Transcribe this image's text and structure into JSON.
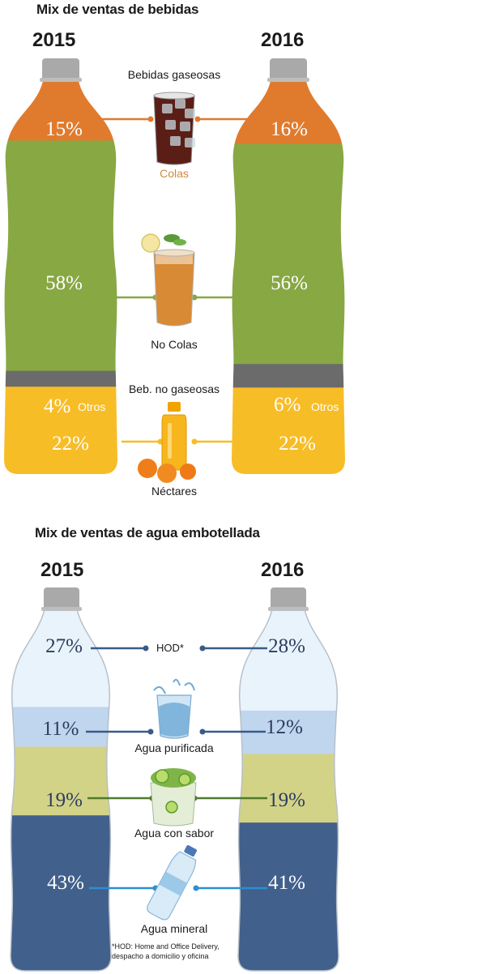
{
  "chart_data": [
    {
      "type": "bar",
      "title": "Mix de ventas de bebidas",
      "categories": [
        "2015",
        "2016"
      ],
      "stacked": true,
      "series": [
        {
          "name": "Colas",
          "values": [
            15,
            16
          ],
          "labels": [
            "15%",
            "16%"
          ],
          "color": "#e07b2e"
        },
        {
          "name": "No Colas",
          "values": [
            58,
            56
          ],
          "labels": [
            "58%",
            "56%"
          ],
          "color": "#87a843"
        },
        {
          "name": "Otros",
          "values": [
            4,
            6
          ],
          "labels": [
            "4%",
            "6%"
          ],
          "color": "#6b6b6b"
        },
        {
          "name": "Néctares",
          "values": [
            22,
            22
          ],
          "labels": [
            "22%",
            "22%"
          ],
          "color": "#f7bd27"
        }
      ],
      "group_labels": {
        "gaseosas": "Bebidas gaseosas",
        "no_gaseosas": "Beb. no gaseosas"
      }
    },
    {
      "type": "bar",
      "title": "Mix de ventas de agua embotellada",
      "categories": [
        "2015",
        "2016"
      ],
      "stacked": true,
      "series": [
        {
          "name": "HOD*",
          "values": [
            27,
            28
          ],
          "labels": [
            "27%",
            "28%"
          ],
          "color": "#e9f3fb"
        },
        {
          "name": "Agua purificada",
          "values": [
            11,
            12
          ],
          "labels": [
            "11%",
            "12%"
          ],
          "color": "#bfd6ee"
        },
        {
          "name": "Agua con sabor",
          "values": [
            19,
            19
          ],
          "labels": [
            "19%",
            "19%"
          ],
          "color": "#d3d388"
        },
        {
          "name": "Agua mineral",
          "values": [
            43,
            41
          ],
          "labels": [
            "43%",
            "41%"
          ],
          "color": "#41608c"
        }
      ],
      "footnote": "*HOD: Home and Office Delivery, despacho a domicilio y oficina"
    }
  ],
  "colors": {
    "cap": "#a9a9a9",
    "water_bottle_outline": "#b8c0c8",
    "line_colas": "#e07b2e",
    "line_nocolas": "#87a843",
    "line_nectares": "#f7bd27",
    "line_hod": "#3a5b87",
    "line_purificada": "#3a5b87",
    "line_sabor": "#4f7a2a",
    "line_mineral": "#2c8fd1"
  },
  "icons": [
    "cola-glass-icon",
    "iced-tea-glass-icon",
    "juice-bottle-oranges-icon",
    "water-splash-glass-icon",
    "lime-water-glass-icon",
    "mineral-water-bottle-icon"
  ]
}
